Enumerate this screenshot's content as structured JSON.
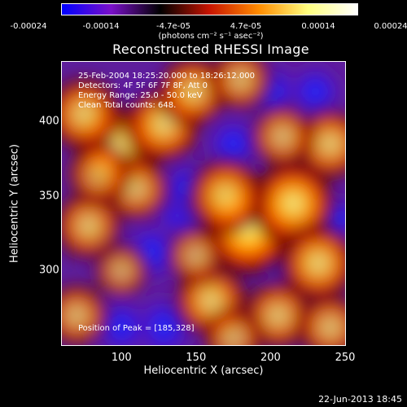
{
  "colorbar": {
    "ticks": [
      "-0.00024",
      "-0.00014",
      "-4.7e-05",
      "4.7e-05",
      "0.00014",
      "0.00024"
    ],
    "units": "(photons cm⁻² s⁻¹ asec⁻²)",
    "colormap": [
      "#0000ff",
      "#7a10c8",
      "#000000",
      "#c81400",
      "#ff8c00",
      "#ffff80",
      "#ffffff"
    ]
  },
  "chart_data": {
    "type": "heatmap",
    "title": "Reconstructed RHESSI Image",
    "xlabel": "Heliocentric X (arcsec)",
    "ylabel": "Heliocentric Y (arcsec)",
    "xlim": [
      60,
      250
    ],
    "ylim": [
      250,
      440
    ],
    "xticks": [
      100,
      150,
      200,
      250
    ],
    "yticks": [
      300,
      350,
      400
    ],
    "clim": [
      -0.00024,
      0.00024
    ],
    "peak": [
      185,
      328
    ],
    "hot_spots": [
      {
        "x": 185,
        "y": 328,
        "v": 1.0
      },
      {
        "x": 215,
        "y": 345,
        "v": 0.85
      },
      {
        "x": 170,
        "y": 350,
        "v": 0.7
      },
      {
        "x": 98,
        "y": 384,
        "v": 0.8
      },
      {
        "x": 128,
        "y": 398,
        "v": 0.72
      },
      {
        "x": 75,
        "y": 405,
        "v": 0.65
      },
      {
        "x": 148,
        "y": 420,
        "v": 0.6
      },
      {
        "x": 180,
        "y": 428,
        "v": 0.45
      },
      {
        "x": 110,
        "y": 355,
        "v": 0.5
      },
      {
        "x": 78,
        "y": 330,
        "v": 0.55
      },
      {
        "x": 85,
        "y": 365,
        "v": 0.45
      },
      {
        "x": 240,
        "y": 385,
        "v": 0.6
      },
      {
        "x": 208,
        "y": 390,
        "v": 0.45
      },
      {
        "x": 232,
        "y": 305,
        "v": 0.7
      },
      {
        "x": 160,
        "y": 280,
        "v": 0.65
      },
      {
        "x": 205,
        "y": 270,
        "v": 0.55
      },
      {
        "x": 240,
        "y": 262,
        "v": 0.5
      },
      {
        "x": 175,
        "y": 255,
        "v": 0.4
      },
      {
        "x": 70,
        "y": 270,
        "v": 0.45
      },
      {
        "x": 100,
        "y": 300,
        "v": 0.3
      },
      {
        "x": 150,
        "y": 310,
        "v": 0.35
      }
    ],
    "cold_spots": [
      {
        "x": 128,
        "y": 262,
        "v": -0.7
      },
      {
        "x": 100,
        "y": 262,
        "v": -0.55
      },
      {
        "x": 120,
        "y": 312,
        "v": -0.6
      },
      {
        "x": 140,
        "y": 340,
        "v": -0.55
      },
      {
        "x": 145,
        "y": 355,
        "v": -0.55
      },
      {
        "x": 120,
        "y": 410,
        "v": -0.5
      },
      {
        "x": 200,
        "y": 420,
        "v": -0.6
      },
      {
        "x": 230,
        "y": 420,
        "v": -0.5
      },
      {
        "x": 175,
        "y": 385,
        "v": -0.5
      },
      {
        "x": 90,
        "y": 318,
        "v": -0.45
      },
      {
        "x": 210,
        "y": 310,
        "v": -0.4
      },
      {
        "x": 165,
        "y": 300,
        "v": -0.4
      },
      {
        "x": 245,
        "y": 335,
        "v": -0.35
      }
    ]
  },
  "info": {
    "line1": "25-Feb-2004 18:25:20.000 to 18:26:12.000",
    "line2": "Detectors: 4F 5F 6F 7F 8F, Att 0",
    "line3": "Energy Range: 25.0 - 50.0 keV",
    "line4": "Clean    Total counts: 648.",
    "peak_label": "Position of Peak = [185,328]"
  },
  "footer": {
    "date": "22-Jun-2013 18:45"
  }
}
